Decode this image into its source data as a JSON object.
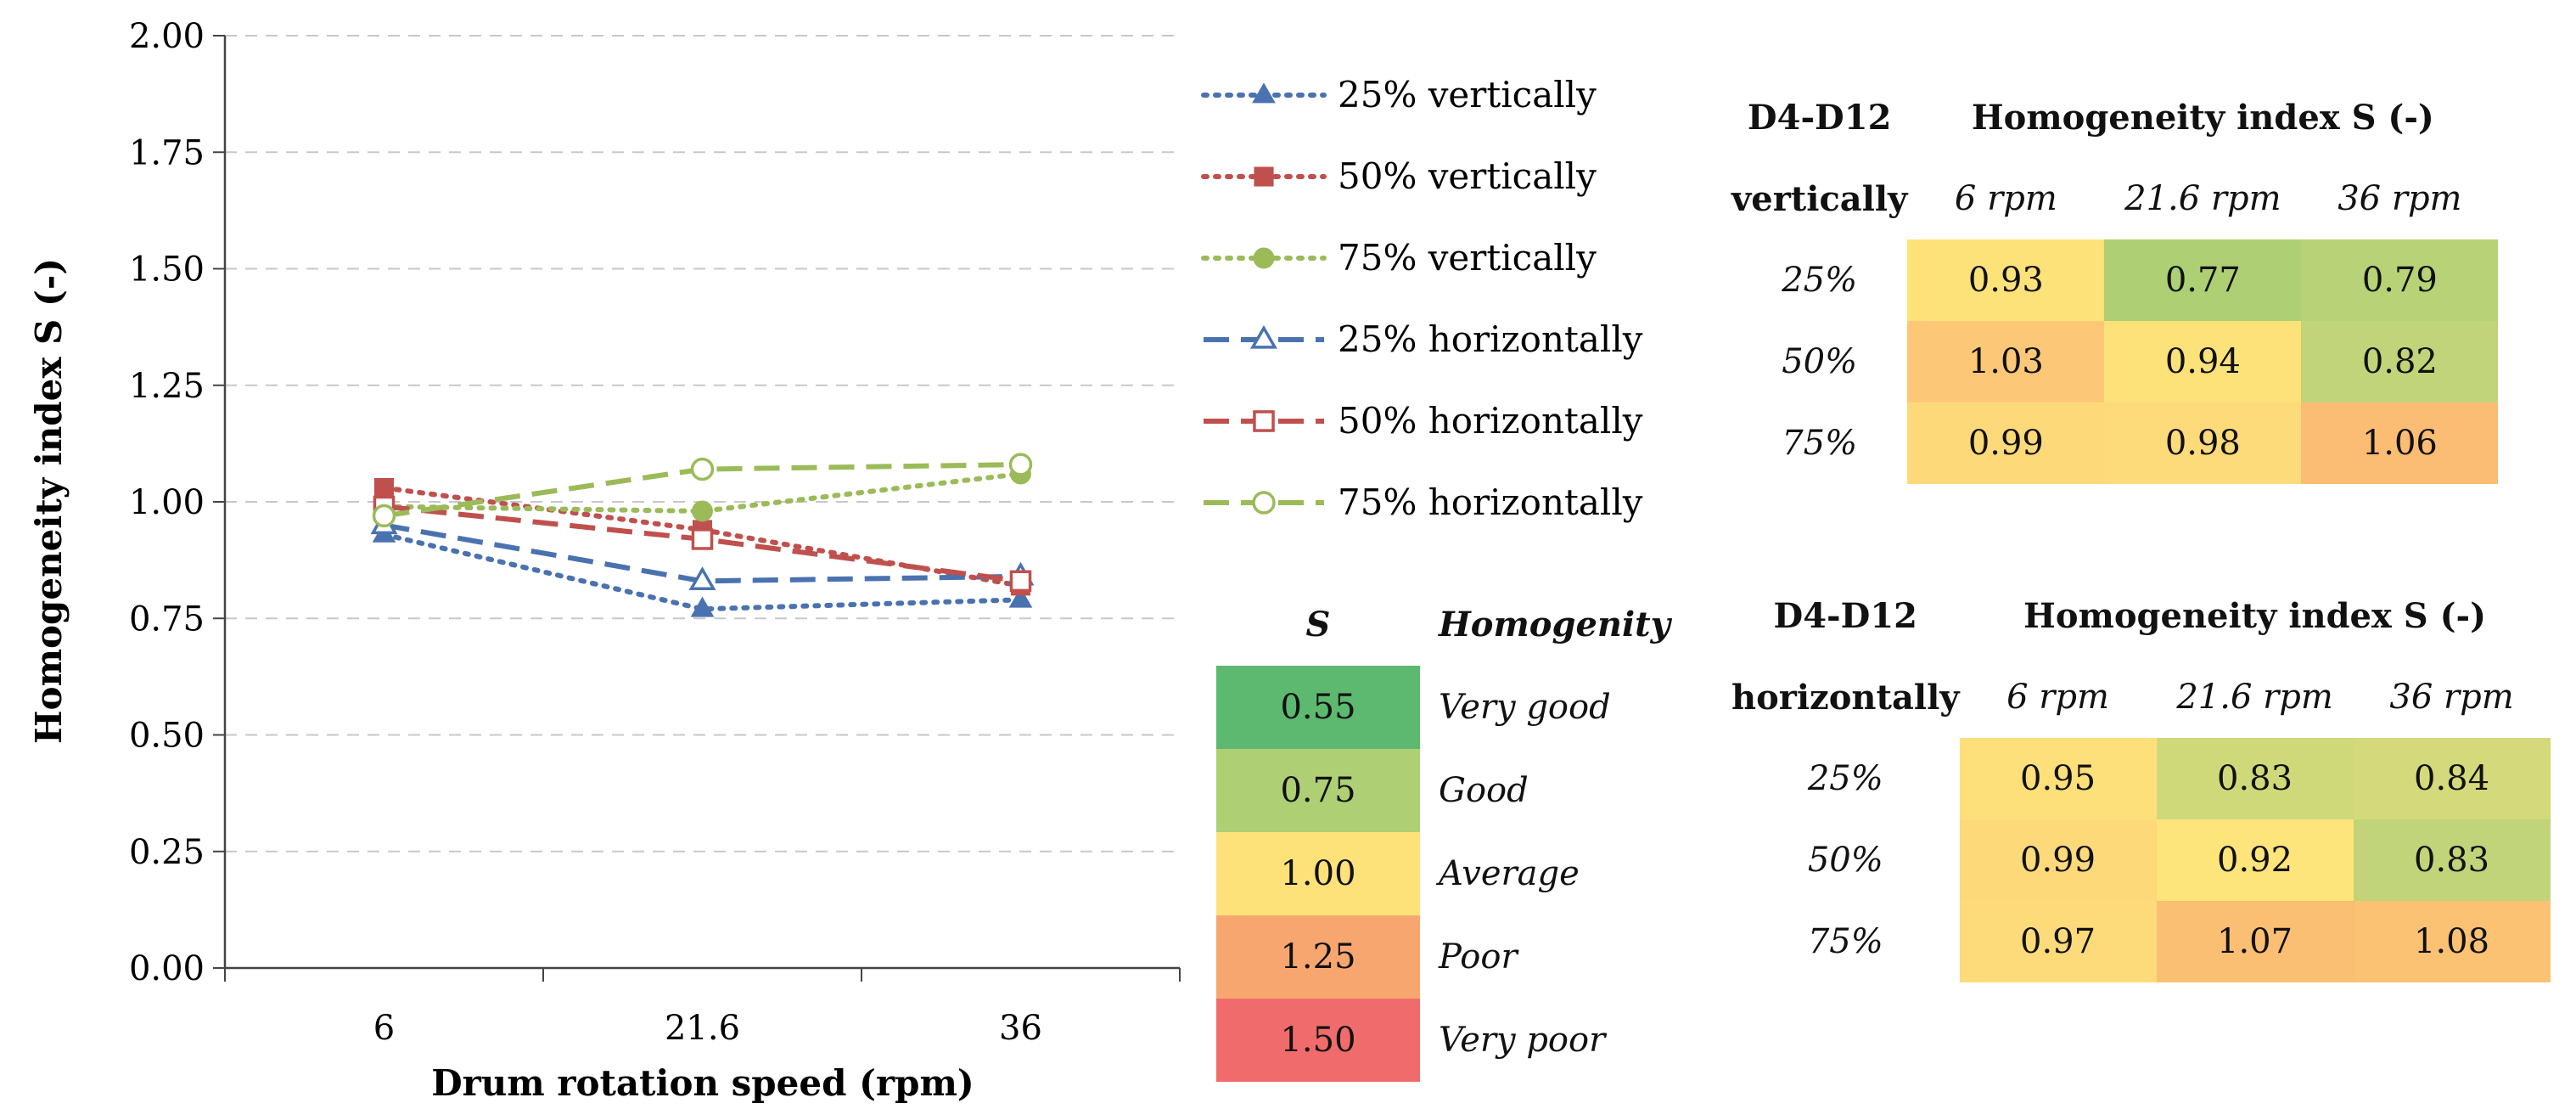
{
  "chart_data": {
    "type": "line",
    "ylabel": "Homogeneity index S (-)",
    "xlabel": "Drum rotation speed (rpm)",
    "categories": [
      "6",
      "21.6",
      "36"
    ],
    "ylim": [
      0,
      2
    ],
    "yticks": [
      "0.00",
      "0.25",
      "0.50",
      "0.75",
      "1.00",
      "1.25",
      "1.50",
      "1.75",
      "2.00"
    ],
    "grid": true,
    "legend_position": "right",
    "series": [
      {
        "name": "25% vertically",
        "values": [
          0.93,
          0.77,
          0.79
        ],
        "color": "#4a72b0",
        "dash": "dot",
        "marker": "triangle",
        "filled": true
      },
      {
        "name": "50% vertically",
        "values": [
          1.03,
          0.94,
          0.82
        ],
        "color": "#c0504d",
        "dash": "dot",
        "marker": "square",
        "filled": true
      },
      {
        "name": "75% vertically",
        "values": [
          0.99,
          0.98,
          1.06
        ],
        "color": "#9bbb59",
        "dash": "dot",
        "marker": "circle",
        "filled": true
      },
      {
        "name": "25% horizontally",
        "values": [
          0.95,
          0.83,
          0.84
        ],
        "color": "#4a72b0",
        "dash": "dash",
        "marker": "triangle",
        "filled": false
      },
      {
        "name": "50% horizontally",
        "values": [
          0.99,
          0.92,
          0.83
        ],
        "color": "#c0504d",
        "dash": "dash",
        "marker": "square",
        "filled": false
      },
      {
        "name": "75% horizontally",
        "values": [
          0.97,
          1.07,
          1.08
        ],
        "color": "#9bbb59",
        "dash": "dash",
        "marker": "circle",
        "filled": false
      }
    ]
  },
  "scale": {
    "col_s": "S",
    "col_h": "Homogenity",
    "rows": [
      {
        "value": "0.55",
        "label": "Very good",
        "color": "#5cb96f"
      },
      {
        "value": "0.75",
        "label": "Good",
        "color": "#aecf74"
      },
      {
        "value": "1.00",
        "label": "Average",
        "color": "#fde27a"
      },
      {
        "value": "1.25",
        "label": "Poor",
        "color": "#f8a670"
      },
      {
        "value": "1.50",
        "label": "Very poor",
        "color": "#f06b6b"
      }
    ]
  },
  "tables": [
    {
      "title": "D4-D12",
      "subtitle": "vertically",
      "header": "Homogeneity index S (-)",
      "cols": [
        "6 rpm",
        "21.6 rpm",
        "36 rpm"
      ],
      "rows": [
        {
          "label": "25%",
          "values": [
            "0.93",
            "0.77",
            "0.79"
          ],
          "colors": [
            "#fde27a",
            "#aecf74",
            "#b8d277"
          ]
        },
        {
          "label": "50%",
          "values": [
            "1.03",
            "0.94",
            "0.82"
          ],
          "colors": [
            "#fcc877",
            "#fde27a",
            "#c2d479"
          ]
        },
        {
          "label": "75%",
          "values": [
            "0.99",
            "0.98",
            "1.06"
          ],
          "colors": [
            "#fdd97a",
            "#fddb7a",
            "#fbbd74"
          ]
        }
      ]
    },
    {
      "title": "D4-D12",
      "subtitle": "horizontally",
      "header": "Homogeneity index S (-)",
      "cols": [
        "6 rpm",
        "21.6 rpm",
        "36 rpm"
      ],
      "rows": [
        {
          "label": "25%",
          "values": [
            "0.95",
            "0.83",
            "0.84"
          ],
          "colors": [
            "#fde07a",
            "#cfd97a",
            "#d4da7b"
          ]
        },
        {
          "label": "50%",
          "values": [
            "0.99",
            "0.92",
            "0.83"
          ],
          "colors": [
            "#fdd97a",
            "#fde47b",
            "#c2d479"
          ]
        },
        {
          "label": "75%",
          "values": [
            "0.97",
            "1.07",
            "1.08"
          ],
          "colors": [
            "#fddb7a",
            "#fbbf74",
            "#fbc274"
          ]
        }
      ]
    }
  ]
}
